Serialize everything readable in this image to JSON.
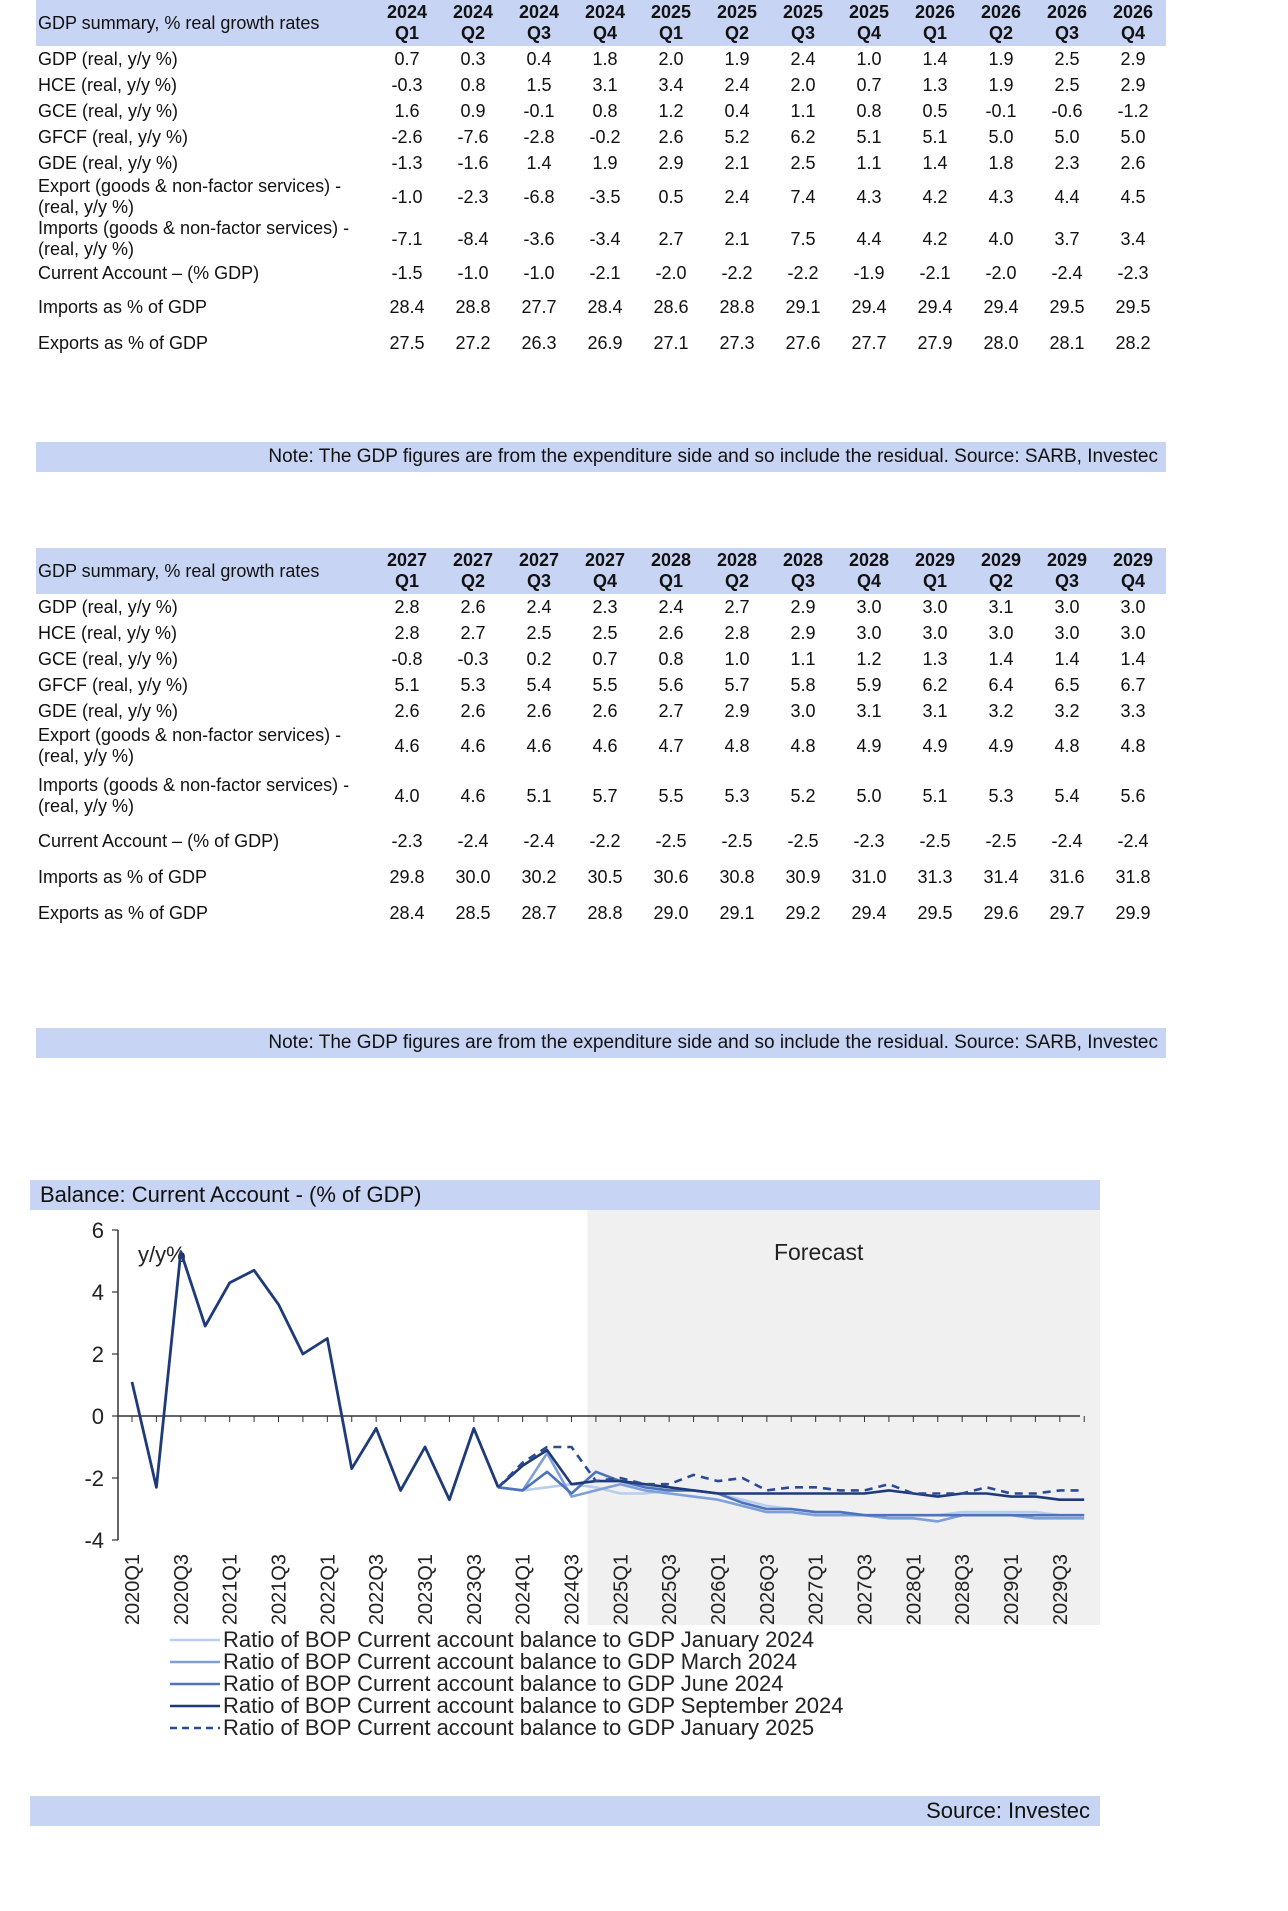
{
  "table1": {
    "header_label": "GDP summary, % real growth rates",
    "columns": [
      {
        "year": "2024",
        "q": "Q1"
      },
      {
        "year": "2024",
        "q": "Q2"
      },
      {
        "year": "2024",
        "q": "Q3"
      },
      {
        "year": "2024",
        "q": "Q4"
      },
      {
        "year": "2025",
        "q": "Q1"
      },
      {
        "year": "2025",
        "q": "Q2"
      },
      {
        "year": "2025",
        "q": "Q3"
      },
      {
        "year": "2025",
        "q": "Q4"
      },
      {
        "year": "2026",
        "q": "Q1"
      },
      {
        "year": "2026",
        "q": "Q2"
      },
      {
        "year": "2026",
        "q": "Q3"
      },
      {
        "year": "2026",
        "q": "Q4"
      }
    ],
    "rows": [
      {
        "label": "GDP (real, y/y %)",
        "values": [
          "0.7",
          "0.3",
          "0.4",
          "1.8",
          "2.0",
          "1.9",
          "2.4",
          "1.0",
          "1.4",
          "1.9",
          "2.5",
          "2.9"
        ]
      },
      {
        "label": "HCE (real, y/y %)",
        "values": [
          "-0.3",
          "0.8",
          "1.5",
          "3.1",
          "3.4",
          "2.4",
          "2.0",
          "0.7",
          "1.3",
          "1.9",
          "2.5",
          "2.9"
        ]
      },
      {
        "label": "GCE (real, y/y %)",
        "values": [
          "1.6",
          "0.9",
          "-0.1",
          "0.8",
          "1.2",
          "0.4",
          "1.1",
          "0.8",
          "0.5",
          "-0.1",
          "-0.6",
          "-1.2"
        ]
      },
      {
        "label": "GFCF (real, y/y %)",
        "values": [
          "-2.6",
          "-7.6",
          "-2.8",
          "-0.2",
          "2.6",
          "5.2",
          "6.2",
          "5.1",
          "5.1",
          "5.0",
          "5.0",
          "5.0"
        ]
      },
      {
        "label": "GDE (real, y/y %)",
        "values": [
          "-1.3",
          "-1.6",
          "1.4",
          "1.9",
          "2.9",
          "2.1",
          "2.5",
          "1.1",
          "1.4",
          "1.8",
          "2.3",
          "2.6"
        ]
      },
      {
        "label": "Export (goods & non-factor services) - (real, y/y %)",
        "values": [
          "-1.0",
          "-2.3",
          "-6.8",
          "-3.5",
          "0.5",
          "2.4",
          "7.4",
          "4.3",
          "4.2",
          "4.3",
          "4.4",
          "4.5"
        ]
      },
      {
        "label": "Imports (goods & non-factor services) - (real, y/y %)",
        "values": [
          "-7.1",
          "-8.4",
          "-3.6",
          "-3.4",
          "2.7",
          "2.1",
          "7.5",
          "4.4",
          "4.2",
          "4.0",
          "3.7",
          "3.4"
        ]
      },
      {
        "label": "Current Account – (% GDP)",
        "values": [
          "-1.5",
          "-1.0",
          "-1.0",
          "-2.1",
          "-2.0",
          "-2.2",
          "-2.2",
          "-1.9",
          "-2.1",
          "-2.0",
          "-2.4",
          "-2.3"
        ]
      },
      {
        "label": "Imports as % of GDP",
        "values": [
          "28.4",
          "28.8",
          "27.7",
          "28.4",
          "28.6",
          "28.8",
          "29.1",
          "29.4",
          "29.4",
          "29.4",
          "29.5",
          "29.5"
        ]
      },
      {
        "label": "Exports as % of GDP",
        "values": [
          "27.5",
          "27.2",
          "26.3",
          "26.9",
          "27.1",
          "27.3",
          "27.6",
          "27.7",
          "27.9",
          "28.0",
          "28.1",
          "28.2"
        ]
      }
    ],
    "note": "Note: The GDP figures are from the expenditure side and so include the residual. Source: SARB, Investec"
  },
  "table2": {
    "header_label": "GDP summary, % real growth rates",
    "columns": [
      {
        "year": "2027",
        "q": "Q1"
      },
      {
        "year": "2027",
        "q": "Q2"
      },
      {
        "year": "2027",
        "q": "Q3"
      },
      {
        "year": "2027",
        "q": "Q4"
      },
      {
        "year": "2028",
        "q": "Q1"
      },
      {
        "year": "2028",
        "q": "Q2"
      },
      {
        "year": "2028",
        "q": "Q3"
      },
      {
        "year": "2028",
        "q": "Q4"
      },
      {
        "year": "2029",
        "q": "Q1"
      },
      {
        "year": "2029",
        "q": "Q2"
      },
      {
        "year": "2029",
        "q": "Q3"
      },
      {
        "year": "2029",
        "q": "Q4"
      }
    ],
    "rows": [
      {
        "label": "GDP (real, y/y %)",
        "values": [
          "2.8",
          "2.6",
          "2.4",
          "2.3",
          "2.4",
          "2.7",
          "2.9",
          "3.0",
          "3.0",
          "3.1",
          "3.0",
          "3.0"
        ]
      },
      {
        "label": "HCE (real, y/y %)",
        "values": [
          "2.8",
          "2.7",
          "2.5",
          "2.5",
          "2.6",
          "2.8",
          "2.9",
          "3.0",
          "3.0",
          "3.0",
          "3.0",
          "3.0"
        ]
      },
      {
        "label": "GCE (real, y/y %)",
        "values": [
          "-0.8",
          "-0.3",
          "0.2",
          "0.7",
          "0.8",
          "1.0",
          "1.1",
          "1.2",
          "1.3",
          "1.4",
          "1.4",
          "1.4"
        ]
      },
      {
        "label": "GFCF (real, y/y %)",
        "values": [
          "5.1",
          "5.3",
          "5.4",
          "5.5",
          "5.6",
          "5.7",
          "5.8",
          "5.9",
          "6.2",
          "6.4",
          "6.5",
          "6.7"
        ]
      },
      {
        "label": "GDE (real, y/y %)",
        "values": [
          "2.6",
          "2.6",
          "2.6",
          "2.6",
          "2.7",
          "2.9",
          "3.0",
          "3.1",
          "3.1",
          "3.2",
          "3.2",
          "3.3"
        ]
      },
      {
        "label": "Export (goods & non-factor services) - (real, y/y %)",
        "values": [
          "4.6",
          "4.6",
          "4.6",
          "4.6",
          "4.7",
          "4.8",
          "4.8",
          "4.9",
          "4.9",
          "4.9",
          "4.8",
          "4.8"
        ]
      },
      {
        "label": "Imports (goods & non-factor services) - (real, y/y %)",
        "values": [
          "4.0",
          "4.6",
          "5.1",
          "5.7",
          "5.5",
          "5.3",
          "5.2",
          "5.0",
          "5.1",
          "5.3",
          "5.4",
          "5.6"
        ]
      },
      {
        "label": "Current Account – (% of GDP)",
        "values": [
          "-2.3",
          "-2.4",
          "-2.4",
          "-2.2",
          "-2.5",
          "-2.5",
          "-2.5",
          "-2.3",
          "-2.5",
          "-2.5",
          "-2.4",
          "-2.4"
        ]
      },
      {
        "label": "Imports as % of GDP",
        "values": [
          "29.8",
          "30.0",
          "30.2",
          "30.5",
          "30.6",
          "30.8",
          "30.9",
          "31.0",
          "31.3",
          "31.4",
          "31.6",
          "31.8"
        ]
      },
      {
        "label": "Exports as % of GDP",
        "values": [
          "28.4",
          "28.5",
          "28.7",
          "28.8",
          "29.0",
          "29.1",
          "29.2",
          "29.4",
          "29.5",
          "29.6",
          "29.7",
          "29.9"
        ]
      }
    ],
    "note": "Note: The GDP figures are from the expenditure side and so include the residual. Source: SARB, Investec"
  },
  "chart": {
    "title": "Balance: Current Account - (% of GDP)",
    "source": "Source: Investec",
    "forecast_label": "Forecast",
    "unit_label": "y/y%"
  },
  "chart_data": {
    "type": "line",
    "title": "Balance: Current Account - (% of GDP)",
    "ylabel": "y/y%",
    "ylim": [
      -4,
      6
    ],
    "yticks": [
      -4,
      -2,
      0,
      2,
      4,
      6
    ],
    "x": [
      "2020Q1",
      "2020Q2",
      "2020Q3",
      "2020Q4",
      "2021Q1",
      "2021Q2",
      "2021Q3",
      "2021Q4",
      "2022Q1",
      "2022Q2",
      "2022Q3",
      "2022Q4",
      "2023Q1",
      "2023Q2",
      "2023Q3",
      "2023Q4",
      "2024Q1",
      "2024Q2",
      "2024Q3",
      "2024Q4",
      "2025Q1",
      "2025Q2",
      "2025Q3",
      "2025Q4",
      "2026Q1",
      "2026Q2",
      "2026Q3",
      "2026Q4",
      "2027Q1",
      "2027Q2",
      "2027Q3",
      "2027Q4",
      "2028Q1",
      "2028Q2",
      "2028Q3",
      "2028Q4",
      "2029Q1",
      "2029Q2",
      "2029Q3",
      "2029Q4"
    ],
    "xtick_labels": [
      "2020Q1",
      "2020Q3",
      "2021Q1",
      "2021Q3",
      "2022Q1",
      "2022Q3",
      "2023Q1",
      "2023Q3",
      "2024Q1",
      "2024Q3",
      "2025Q1",
      "2025Q3",
      "2026Q1",
      "2026Q3",
      "2027Q1",
      "2027Q3",
      "2028Q1",
      "2028Q3",
      "2029Q1",
      "2029Q3"
    ],
    "forecast_start": "2024Q4",
    "legend_position": "bottom",
    "grid": false,
    "history": [
      1.1,
      -2.3,
      5.3,
      2.9,
      4.3,
      4.7,
      3.6,
      2.0,
      2.5,
      -1.7,
      -0.4,
      -2.4,
      -1.0,
      -2.7,
      -0.4,
      -2.3
    ],
    "series": [
      {
        "name": "Ratio of BOP Current account balance to GDP January 2024",
        "color": "#b9cdee",
        "dash": false,
        "values": [
          null,
          null,
          null,
          null,
          null,
          null,
          null,
          null,
          null,
          null,
          null,
          null,
          null,
          null,
          null,
          -2.3,
          -2.4,
          -2.3,
          -2.2,
          -2.3,
          -2.5,
          -2.5,
          -2.4,
          -2.4,
          -2.5,
          -2.7,
          -2.9,
          -3.0,
          -3.1,
          -3.1,
          -3.2,
          -3.2,
          -3.2,
          -3.2,
          -3.1,
          -3.1,
          -3.1,
          -3.1,
          -3.2,
          -3.2
        ]
      },
      {
        "name": "Ratio of BOP Current account balance to GDP March 2024",
        "color": "#7e9fd8",
        "dash": false,
        "values": [
          null,
          null,
          null,
          null,
          null,
          null,
          null,
          null,
          null,
          null,
          null,
          null,
          null,
          null,
          null,
          -2.3,
          -2.4,
          -1.2,
          -2.6,
          -2.4,
          -2.2,
          -2.4,
          -2.5,
          -2.6,
          -2.7,
          -2.9,
          -3.1,
          -3.1,
          -3.2,
          -3.2,
          -3.2,
          -3.3,
          -3.3,
          -3.4,
          -3.2,
          -3.2,
          -3.2,
          -3.3,
          -3.3,
          -3.3
        ]
      },
      {
        "name": "Ratio of BOP Current account balance to GDP June 2024",
        "color": "#4e73bd",
        "dash": false,
        "values": [
          null,
          null,
          null,
          null,
          null,
          null,
          null,
          null,
          null,
          null,
          null,
          null,
          null,
          null,
          null,
          -2.3,
          -2.4,
          -1.8,
          -2.5,
          -1.8,
          -2.1,
          -2.3,
          -2.4,
          -2.4,
          -2.5,
          -2.8,
          -3.0,
          -3.0,
          -3.1,
          -3.1,
          -3.2,
          -3.2,
          -3.2,
          -3.2,
          -3.2,
          -3.2,
          -3.2,
          -3.2,
          -3.2,
          -3.2
        ]
      },
      {
        "name": "Ratio of BOP Current account balance to GDP September 2024",
        "color": "#1f3a78",
        "dash": false,
        "values": [
          null,
          null,
          null,
          null,
          null,
          null,
          null,
          null,
          null,
          null,
          null,
          null,
          null,
          null,
          null,
          -2.3,
          -1.6,
          -1.1,
          -2.2,
          -2.1,
          -2.1,
          -2.2,
          -2.3,
          -2.4,
          -2.5,
          -2.5,
          -2.5,
          -2.5,
          -2.5,
          -2.5,
          -2.5,
          -2.4,
          -2.5,
          -2.6,
          -2.5,
          -2.5,
          -2.6,
          -2.6,
          -2.7,
          -2.7
        ]
      },
      {
        "name": "Ratio of BOP Current account balance to GDP January 2025",
        "color": "#2a4a96",
        "dash": true,
        "values": [
          null,
          null,
          null,
          null,
          null,
          null,
          null,
          null,
          null,
          null,
          null,
          null,
          null,
          null,
          null,
          -2.3,
          -1.5,
          -1.0,
          -1.0,
          -2.1,
          -2.0,
          -2.2,
          -2.2,
          -1.9,
          -2.1,
          -2.0,
          -2.4,
          -2.3,
          -2.3,
          -2.4,
          -2.4,
          -2.2,
          -2.5,
          -2.5,
          -2.5,
          -2.3,
          -2.5,
          -2.5,
          -2.4,
          -2.4
        ]
      }
    ]
  }
}
